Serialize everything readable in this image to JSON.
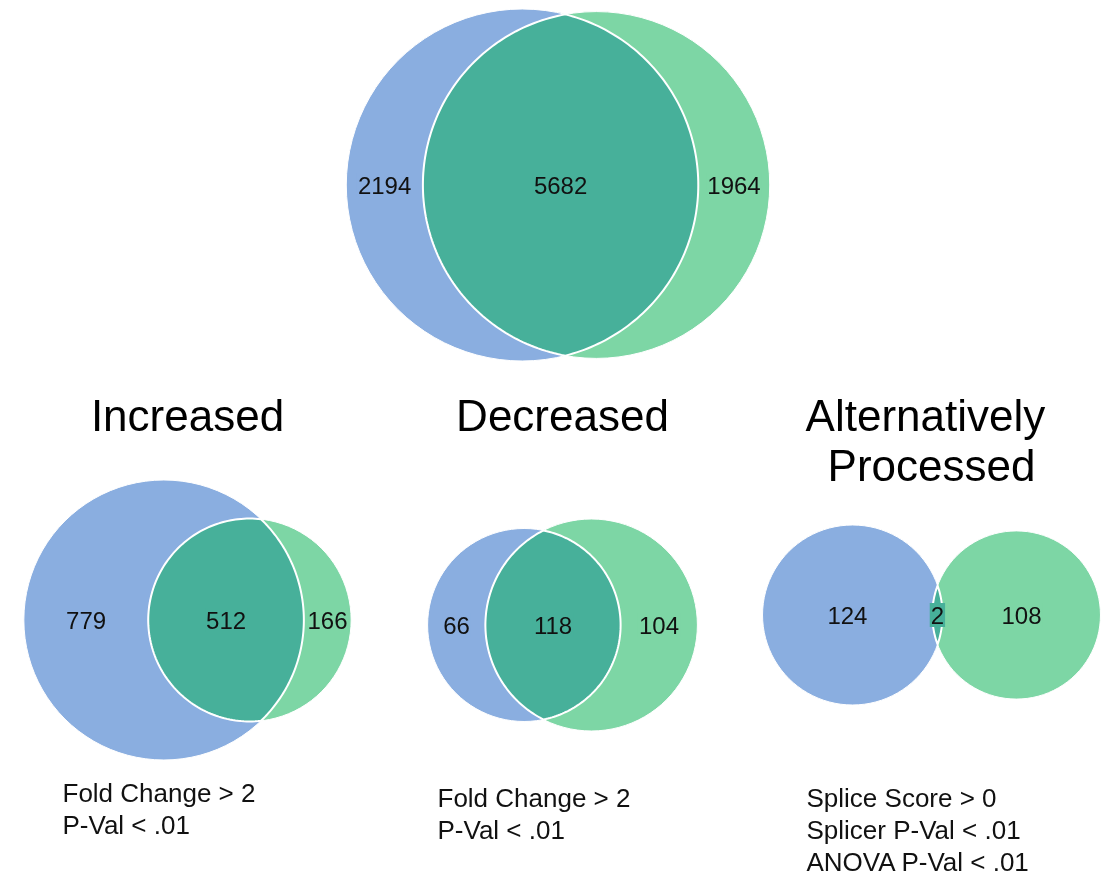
{
  "chart_data": [
    {
      "type": "other",
      "data_labels": true,
      "values": [
        2194,
        5682,
        1964
      ],
      "colors": [
        "#8aaee0",
        "#47b09a",
        "#7dd6a5"
      ]
    },
    {
      "type": "other",
      "data_labels": true,
      "title": "Increased",
      "values": [
        779,
        512,
        166
      ],
      "colors": [
        "#8aaee0",
        "#47b09a",
        "#7dd6a5"
      ],
      "annotations": [
        "Fold Change > 2",
        "P-Val < .01"
      ]
    },
    {
      "type": "other",
      "data_labels": true,
      "title": "Decreased",
      "values": [
        66,
        118,
        104
      ],
      "colors": [
        "#8aaee0",
        "#47b09a",
        "#7dd6a5"
      ],
      "annotations": [
        "Fold Change > 2",
        "P-Val < .01"
      ]
    },
    {
      "type": "other",
      "data_labels": true,
      "title": "Alternatively Processed",
      "values": [
        124,
        2,
        108
      ],
      "colors": [
        "#8aaee0",
        "#47b09a",
        "#7dd6a5"
      ],
      "annotations": [
        "Splice Score > 0",
        "Splicer P-Val < .01",
        "ANOVA P-Val < .01"
      ]
    }
  ]
}
